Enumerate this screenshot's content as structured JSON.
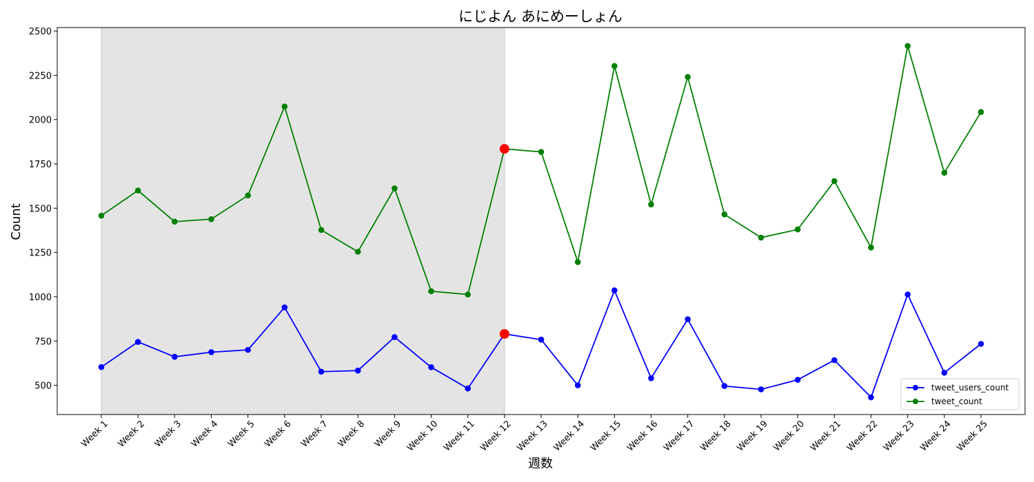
{
  "chart_data": {
    "type": "line",
    "title": "にじよん あにめーしょん",
    "xlabel": "週数",
    "ylabel": "Count",
    "categories": [
      "Week 1",
      "Week 2",
      "Week 3",
      "Week 4",
      "Week 5",
      "Week 6",
      "Week 7",
      "Week 8",
      "Week 9",
      "Week 10",
      "Week 11",
      "Week 12",
      "Week 13",
      "Week 14",
      "Week 15",
      "Week 16",
      "Week 17",
      "Week 18",
      "Week 19",
      "Week 20",
      "Week 21",
      "Week 22",
      "Week 23",
      "Week 24",
      "Week 25"
    ],
    "ylim": [
      335,
      2520
    ],
    "yticks": [
      500,
      750,
      1000,
      1250,
      1500,
      1750,
      2000,
      2250,
      2500
    ],
    "shaded_range": [
      "Week 1",
      "Week 12"
    ],
    "highlight_category": "Week 12",
    "highlight_color": "#ff0000",
    "shade_color": "#e4e4e4",
    "legend_position": "lower right",
    "grid": false,
    "series": [
      {
        "name": "tweet_users_count",
        "color": "#0000ff",
        "values": [
          603,
          745,
          661,
          687,
          700,
          940,
          577,
          583,
          772,
          602,
          482,
          790,
          758,
          500,
          1036,
          540,
          873,
          496,
          477,
          531,
          642,
          432,
          1013,
          571,
          734
        ]
      },
      {
        "name": "tweet_count",
        "color": "#008000",
        "values": [
          1458,
          1600,
          1424,
          1438,
          1572,
          2074,
          1377,
          1254,
          1612,
          1031,
          1013,
          1835,
          1818,
          1196,
          2303,
          1521,
          2241,
          1465,
          1334,
          1380,
          1653,
          1278,
          2416,
          1700,
          2043
        ]
      }
    ]
  }
}
